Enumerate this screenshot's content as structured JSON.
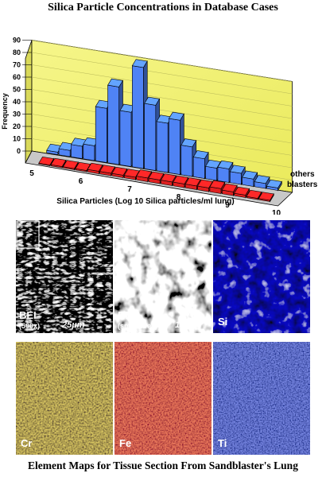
{
  "top_title": "Silica Particle Concentrations in Database Cases",
  "bottom_title": "Element Maps for Tissue Section From Sandblaster's Lung",
  "chart_data": {
    "type": "bar",
    "subtype": "3d-histogram",
    "title": "Silica Particle Concentrations in Database Cases",
    "xlabel": "Silica Particles (Log 10 Silica particles/ml lung)",
    "ylabel": "Frequency",
    "xlim": [
      5,
      10
    ],
    "ylim": [
      0,
      90
    ],
    "x_ticks": [
      "5",
      "6",
      "7",
      "8",
      "9",
      "10"
    ],
    "y_ticks": [
      "0",
      "10",
      "20",
      "30",
      "40",
      "50",
      "60",
      "70",
      "80",
      "90"
    ],
    "bin_centers": [
      5.25,
      5.5,
      5.75,
      6.0,
      6.25,
      6.5,
      6.75,
      7.0,
      7.25,
      7.5,
      7.75,
      8.0,
      8.25,
      8.5,
      8.75,
      9.0,
      9.25,
      9.5,
      9.75
    ],
    "series": [
      {
        "name": "others",
        "color": "#4f83f5",
        "values": [
          2,
          5,
          10,
          12,
          44,
          63,
          44,
          82,
          53,
          40,
          44,
          24,
          16,
          10,
          11,
          9,
          6,
          4,
          2
        ]
      },
      {
        "name": "blasters",
        "color": "#e02020",
        "values": [
          0,
          1,
          1,
          1,
          2,
          2,
          2,
          2,
          3,
          3,
          3,
          3,
          3,
          3,
          4,
          3,
          2,
          1,
          1
        ]
      }
    ],
    "wall_color": "#f2f279",
    "floor_color": "#c8c8c8"
  },
  "panels": {
    "row1": [
      {
        "label": "BEI",
        "sublabel": "(500x)",
        "scale": "25µm"
      },
      {
        "label": "BEI",
        "sublabel": "(small area)",
        "scale": "10µm"
      },
      {
        "label": "Si"
      }
    ],
    "row2": [
      {
        "label": "Cr"
      },
      {
        "label": "Fe"
      },
      {
        "label": "Ti"
      }
    ]
  }
}
